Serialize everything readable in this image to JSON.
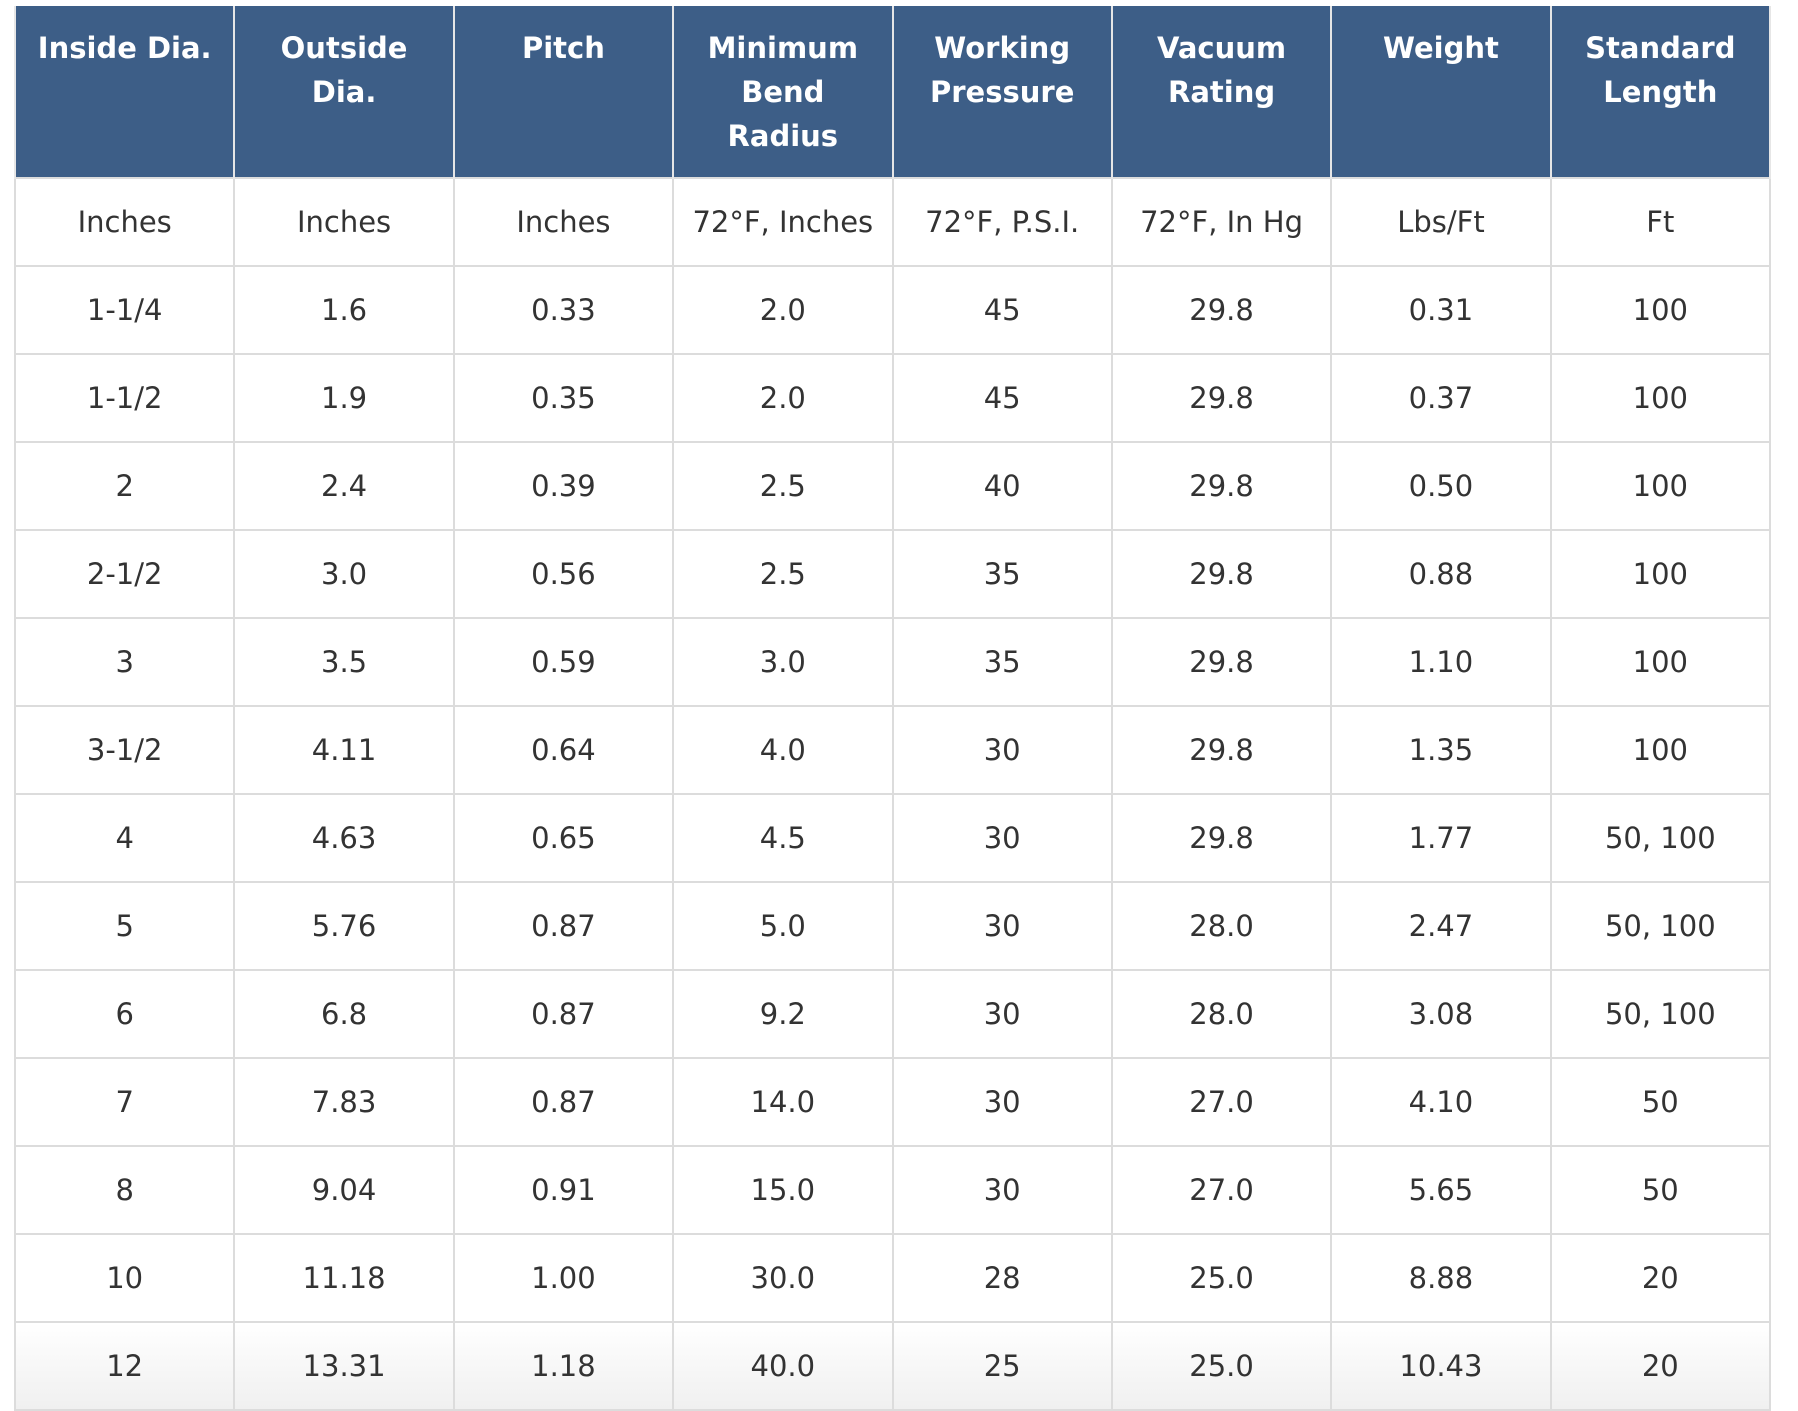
{
  "table": {
    "columns": [
      "Inside Dia.",
      "Outside\nDia.",
      "Pitch",
      "Minimum\nBend\nRadius",
      "Working\nPressure",
      "Vacuum\nRating",
      "Weight",
      "Standard\nLength"
    ],
    "units": [
      "Inches",
      "Inches",
      "Inches",
      "72°F, Inches",
      "72°F, P.S.I.",
      "72°F, In Hg",
      "Lbs/Ft",
      "Ft"
    ],
    "rows": [
      [
        "1-1/4",
        "1.6",
        "0.33",
        "2.0",
        "45",
        "29.8",
        "0.31",
        "100"
      ],
      [
        "1-1/2",
        "1.9",
        "0.35",
        "2.0",
        "45",
        "29.8",
        "0.37",
        "100"
      ],
      [
        "2",
        "2.4",
        "0.39",
        "2.5",
        "40",
        "29.8",
        "0.50",
        "100"
      ],
      [
        "2-1/2",
        "3.0",
        "0.56",
        "2.5",
        "35",
        "29.8",
        "0.88",
        "100"
      ],
      [
        "3",
        "3.5",
        "0.59",
        "3.0",
        "35",
        "29.8",
        "1.10",
        "100"
      ],
      [
        "3-1/2",
        "4.11",
        "0.64",
        "4.0",
        "30",
        "29.8",
        "1.35",
        "100"
      ],
      [
        "4",
        "4.63",
        "0.65",
        "4.5",
        "30",
        "29.8",
        "1.77",
        "50, 100"
      ],
      [
        "5",
        "5.76",
        "0.87",
        "5.0",
        "30",
        "28.0",
        "2.47",
        "50, 100"
      ],
      [
        "6",
        "6.8",
        "0.87",
        "9.2",
        "30",
        "28.0",
        "3.08",
        "50, 100"
      ],
      [
        "7",
        "7.83",
        "0.87",
        "14.0",
        "30",
        "27.0",
        "4.10",
        "50"
      ],
      [
        "8",
        "9.04",
        "0.91",
        "15.0",
        "30",
        "27.0",
        "5.65",
        "50"
      ],
      [
        "10",
        "11.18",
        "1.00",
        "30.0",
        "28",
        "25.0",
        "8.88",
        "20"
      ],
      [
        "12",
        "13.31",
        "1.18",
        "40.0",
        "25",
        "25.0",
        "10.43",
        "20"
      ]
    ]
  }
}
